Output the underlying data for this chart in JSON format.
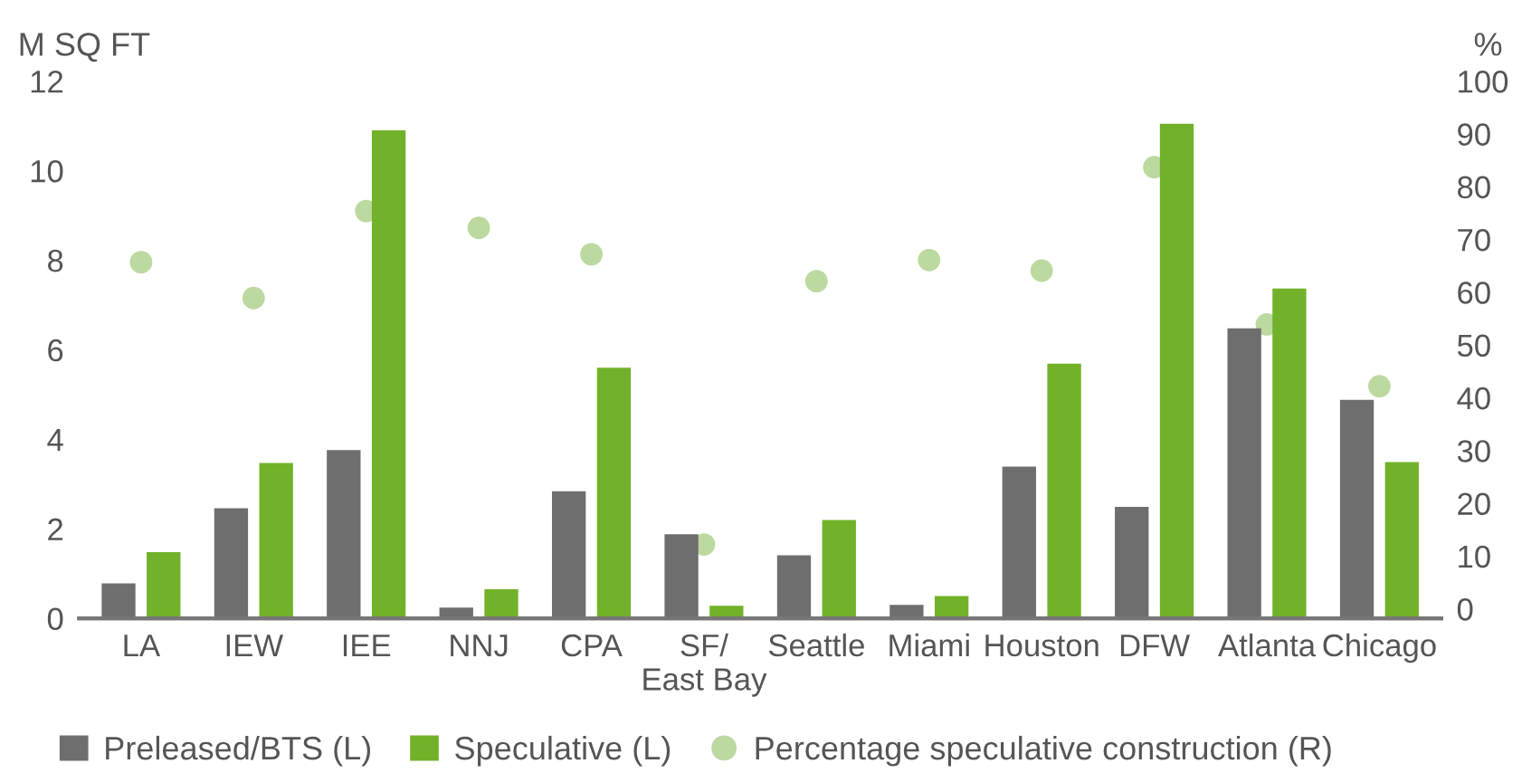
{
  "chart_data": {
    "type": "bar",
    "ylabel": "M SQ FT",
    "y2label": "%",
    "categories": [
      "LA",
      "IEW",
      "IEE",
      "NNJ",
      "CPA",
      "SF/\nEast Bay",
      "Seattle",
      "Miami",
      "Houston",
      "DFW",
      "Atlanta",
      "Chicago"
    ],
    "series": [
      {
        "name": "Preleased/BTS (L)",
        "color": "#6e6e6e",
        "values": [
          0.78,
          2.46,
          3.76,
          0.24,
          2.84,
          1.88,
          1.41,
          0.3,
          3.39,
          2.49,
          6.48,
          4.88
        ]
      },
      {
        "name": "Speculative (L)",
        "color": "#72b12a",
        "values": [
          1.48,
          3.47,
          10.9,
          0.65,
          5.6,
          0.28,
          2.2,
          0.5,
          5.69,
          11.05,
          7.37,
          3.49
        ]
      },
      {
        "name": "Percentage speculative construction (R)",
        "type": "scatter",
        "axis": "y2",
        "color": "#bcd9a0",
        "marker": "circle",
        "values": [
          65.7,
          58.9,
          75.4,
          72.2,
          67.2,
          12.2,
          62.1,
          66.1,
          64.1,
          83.7,
          53.9,
          42.2
        ]
      }
    ],
    "ylim": [
      0,
      12
    ],
    "yticks": [
      0,
      2,
      4,
      6,
      8,
      10,
      12
    ],
    "y2lim": [
      -1.8,
      100
    ],
    "y2ticks": [
      0,
      10,
      20,
      30,
      40,
      50,
      60,
      70,
      80,
      90,
      100
    ],
    "legend": "bottom",
    "grid": false
  }
}
